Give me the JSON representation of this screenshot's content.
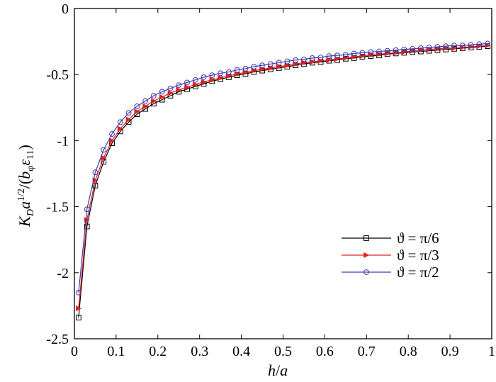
{
  "chart_data": {
    "type": "line",
    "xlabel": {
      "main": "h",
      "sep": "/",
      "tail": "a"
    },
    "ylabel": {
      "k": "K",
      "k_sub": "D",
      "a": "a",
      "exp": "1/2",
      "div": "/(",
      "b": "b",
      "b_sub": "φ",
      "eps": "ε",
      "eps_sub": "11",
      "close": ")"
    },
    "xlim": [
      0,
      1
    ],
    "ylim": [
      -2.5,
      0
    ],
    "xticks": [
      0,
      0.1,
      0.2,
      0.3,
      0.4,
      0.5,
      0.6,
      0.7,
      0.8,
      0.9,
      1
    ],
    "xtick_labels": [
      "0",
      "0.1",
      "0.2",
      "0.3",
      "0.4",
      "0.5",
      "0.6",
      "0.7",
      "0.8",
      "0.9",
      "1"
    ],
    "yticks": [
      0,
      -0.5,
      -1,
      -1.5,
      -2,
      -2.5
    ],
    "ytick_labels": [
      "0",
      "-0.5",
      "-1",
      "-1.5",
      "-2",
      "-2.5"
    ],
    "grid": false,
    "legend_position": "lower-right",
    "series": [
      {
        "name": "ϑ = π/6",
        "color": "#000000",
        "marker": "square",
        "x": [
          0.01,
          0.03,
          0.05,
          0.07,
          0.09,
          0.11,
          0.13,
          0.15,
          0.17,
          0.19,
          0.21,
          0.23,
          0.25,
          0.27,
          0.29,
          0.31,
          0.33,
          0.35,
          0.37,
          0.39,
          0.41,
          0.43,
          0.45,
          0.47,
          0.49,
          0.51,
          0.53,
          0.55,
          0.57,
          0.59,
          0.61,
          0.63,
          0.65,
          0.67,
          0.69,
          0.71,
          0.73,
          0.75,
          0.77,
          0.79,
          0.81,
          0.83,
          0.85,
          0.87,
          0.89,
          0.91,
          0.93,
          0.95,
          0.97,
          0.99
        ],
        "y": [
          -2.34,
          -1.65,
          -1.34,
          -1.16,
          -1.02,
          -0.93,
          -0.86,
          -0.8,
          -0.76,
          -0.72,
          -0.69,
          -0.66,
          -0.63,
          -0.61,
          -0.59,
          -0.57,
          -0.55,
          -0.535,
          -0.52,
          -0.505,
          -0.495,
          -0.48,
          -0.47,
          -0.46,
          -0.45,
          -0.44,
          -0.43,
          -0.42,
          -0.41,
          -0.405,
          -0.395,
          -0.39,
          -0.38,
          -0.375,
          -0.365,
          -0.36,
          -0.355,
          -0.345,
          -0.34,
          -0.335,
          -0.33,
          -0.325,
          -0.32,
          -0.315,
          -0.31,
          -0.305,
          -0.3,
          -0.295,
          -0.29,
          -0.285
        ]
      },
      {
        "name": "ϑ = π/3",
        "color": "#e02020",
        "marker": "triangle-right",
        "x": [
          0.01,
          0.03,
          0.05,
          0.07,
          0.09,
          0.11,
          0.13,
          0.15,
          0.17,
          0.19,
          0.21,
          0.23,
          0.25,
          0.27,
          0.29,
          0.31,
          0.33,
          0.35,
          0.37,
          0.39,
          0.41,
          0.43,
          0.45,
          0.47,
          0.49,
          0.51,
          0.53,
          0.55,
          0.57,
          0.59,
          0.61,
          0.63,
          0.65,
          0.67,
          0.69,
          0.71,
          0.73,
          0.75,
          0.77,
          0.79,
          0.81,
          0.83,
          0.85,
          0.87,
          0.89,
          0.91,
          0.93,
          0.95,
          0.97,
          0.99
        ],
        "y": [
          -2.27,
          -1.6,
          -1.3,
          -1.13,
          -1.0,
          -0.91,
          -0.84,
          -0.78,
          -0.74,
          -0.7,
          -0.67,
          -0.64,
          -0.615,
          -0.595,
          -0.575,
          -0.555,
          -0.54,
          -0.525,
          -0.51,
          -0.495,
          -0.485,
          -0.47,
          -0.46,
          -0.45,
          -0.44,
          -0.43,
          -0.42,
          -0.41,
          -0.405,
          -0.395,
          -0.39,
          -0.38,
          -0.375,
          -0.365,
          -0.36,
          -0.35,
          -0.345,
          -0.34,
          -0.335,
          -0.33,
          -0.32,
          -0.315,
          -0.31,
          -0.305,
          -0.3,
          -0.3,
          -0.295,
          -0.29,
          -0.285,
          -0.28
        ]
      },
      {
        "name": "ϑ = π/2",
        "color": "#3a3ab0",
        "marker": "circle",
        "x": [
          0.01,
          0.03,
          0.05,
          0.07,
          0.09,
          0.11,
          0.13,
          0.15,
          0.17,
          0.19,
          0.21,
          0.23,
          0.25,
          0.27,
          0.29,
          0.31,
          0.33,
          0.35,
          0.37,
          0.39,
          0.41,
          0.43,
          0.45,
          0.47,
          0.49,
          0.51,
          0.53,
          0.55,
          0.57,
          0.59,
          0.61,
          0.63,
          0.65,
          0.67,
          0.69,
          0.71,
          0.73,
          0.75,
          0.77,
          0.79,
          0.81,
          0.83,
          0.85,
          0.87,
          0.89,
          0.91,
          0.93,
          0.95,
          0.97,
          0.99
        ],
        "y": [
          -2.15,
          -1.52,
          -1.24,
          -1.07,
          -0.95,
          -0.86,
          -0.79,
          -0.74,
          -0.7,
          -0.66,
          -0.63,
          -0.605,
          -0.58,
          -0.56,
          -0.54,
          -0.52,
          -0.505,
          -0.49,
          -0.48,
          -0.465,
          -0.455,
          -0.44,
          -0.43,
          -0.42,
          -0.41,
          -0.4,
          -0.39,
          -0.385,
          -0.375,
          -0.37,
          -0.36,
          -0.355,
          -0.35,
          -0.34,
          -0.335,
          -0.33,
          -0.325,
          -0.32,
          -0.315,
          -0.31,
          -0.305,
          -0.3,
          -0.295,
          -0.29,
          -0.285,
          -0.28,
          -0.28,
          -0.275,
          -0.27,
          -0.265
        ]
      }
    ]
  }
}
